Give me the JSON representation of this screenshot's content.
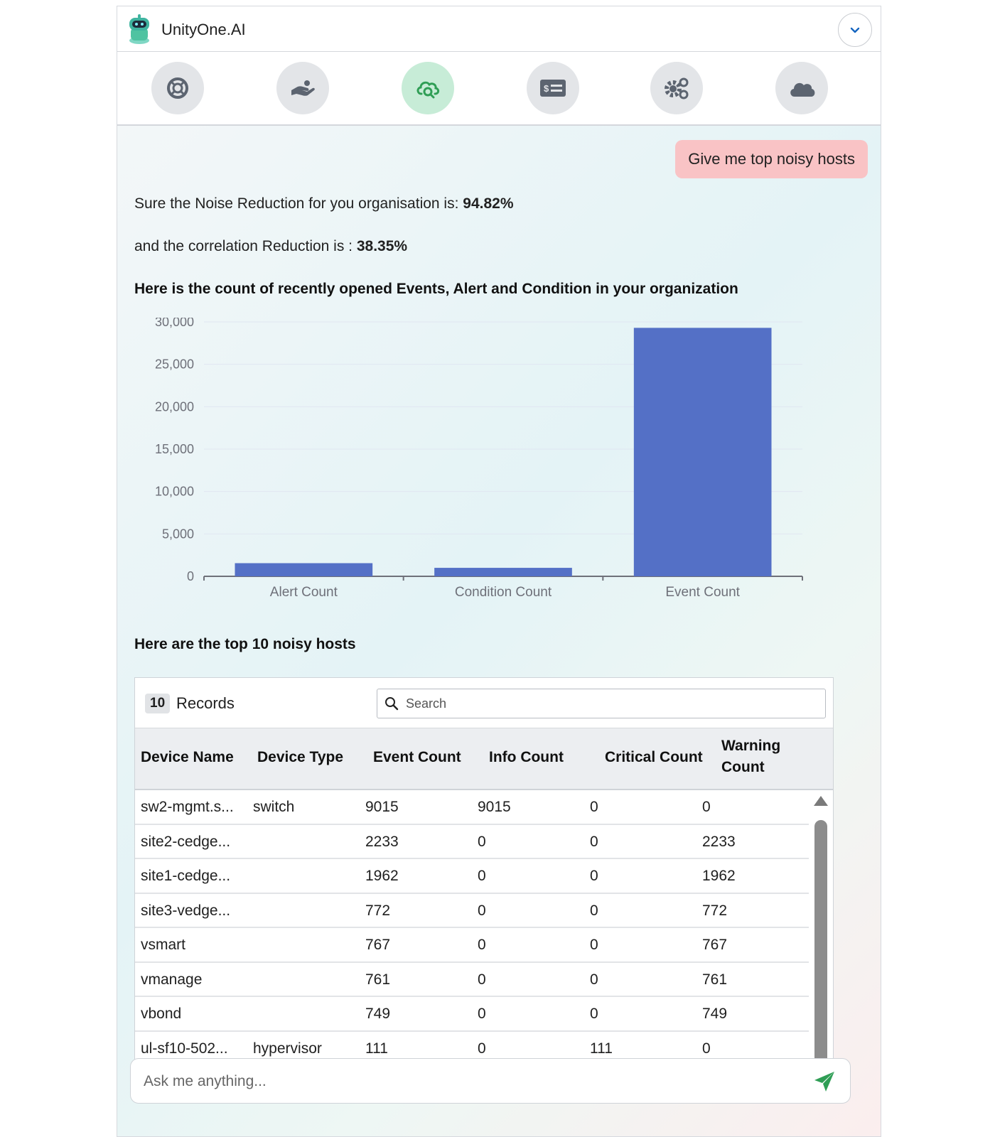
{
  "app": {
    "title": "UnityOne.AI"
  },
  "toolbar": {
    "items": [
      {
        "name": "support-icon",
        "active": false
      },
      {
        "name": "hand-icon",
        "active": false
      },
      {
        "name": "cloud-search-icon",
        "active": true
      },
      {
        "name": "billing-icon",
        "active": false
      },
      {
        "name": "settings-gears-icon",
        "active": false
      },
      {
        "name": "cloud-icon",
        "active": false
      }
    ]
  },
  "conversation": {
    "user_message": "Give me top noisy hosts",
    "noise_prefix": "Sure the Noise Reduction for you organisation is: ",
    "noise_value": "94.82%",
    "correlation_prefix": "and the correlation Reduction is : ",
    "correlation_value": "38.35%",
    "chart_heading": "Here is the count of recently opened Events, Alert and Condition in your organization",
    "table_heading": "Here are the top 10 noisy hosts"
  },
  "chart_data": {
    "type": "bar",
    "categories": [
      "Alert Count",
      "Condition Count",
      "Event Count"
    ],
    "values": [
      1550,
      1000,
      29300
    ],
    "ylim": [
      0,
      30000
    ],
    "yticks": [
      0,
      5000,
      10000,
      15000,
      20000,
      25000,
      30000
    ],
    "ytick_labels": [
      "0",
      "5,000",
      "10,000",
      "15,000",
      "20,000",
      "25,000",
      "30,000"
    ],
    "grid": true,
    "bar_color": "#5470c6"
  },
  "table": {
    "record_count": "10",
    "records_label": "Records",
    "search_placeholder": "Search",
    "headers": [
      "Device Name",
      "Device Type",
      "Event Count",
      "Info Count",
      "Critical Count",
      "Warning Count"
    ],
    "rows": [
      [
        "sw2-mgmt.s...",
        "switch",
        "9015",
        "9015",
        "0",
        "0"
      ],
      [
        "site2-cedge...",
        "",
        "2233",
        "0",
        "0",
        "2233"
      ],
      [
        "site1-cedge...",
        "",
        "1962",
        "0",
        "0",
        "1962"
      ],
      [
        "site3-vedge...",
        "",
        "772",
        "0",
        "0",
        "772"
      ],
      [
        "vsmart",
        "",
        "767",
        "0",
        "0",
        "767"
      ],
      [
        "vmanage",
        "",
        "761",
        "0",
        "0",
        "761"
      ],
      [
        "vbond",
        "",
        "749",
        "0",
        "0",
        "749"
      ],
      [
        "ul-sf10-502...",
        "hypervisor",
        "111",
        "0",
        "111",
        "0"
      ]
    ]
  },
  "composer": {
    "placeholder": "Ask me anything..."
  }
}
